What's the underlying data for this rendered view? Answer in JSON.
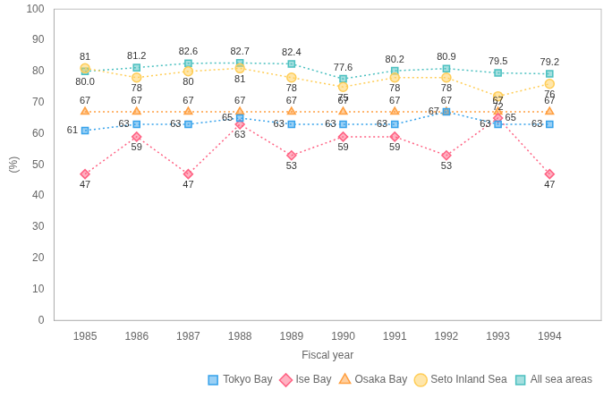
{
  "chart_data": {
    "type": "line",
    "xlabel": "Fiscal year",
    "ylabel": "(%)",
    "x": [
      1985,
      1986,
      1987,
      1988,
      1989,
      1990,
      1991,
      1992,
      1993,
      1994
    ],
    "xlim": [
      1984.4,
      1995.0
    ],
    "xticks": [
      1985,
      1986,
      1987,
      1988,
      1989,
      1990,
      1991,
      1992,
      1993,
      1994
    ],
    "ylim": [
      0,
      100
    ],
    "yticks": [
      0,
      10,
      20,
      30,
      40,
      50,
      60,
      70,
      80,
      90,
      100
    ],
    "grid": false,
    "legend": "lower right",
    "data_labels": true,
    "line_style": "dotted",
    "series": [
      {
        "name": "Tokyo Bay",
        "marker": "square",
        "values": [
          61,
          63,
          63,
          65,
          63,
          63,
          63,
          67,
          63,
          63
        ]
      },
      {
        "name": "Ise Bay",
        "marker": "diamond",
        "values": [
          47,
          59,
          47,
          63,
          53,
          59,
          59,
          53,
          65,
          47
        ]
      },
      {
        "name": "Osaka Bay",
        "marker": "triangle",
        "values": [
          67,
          67,
          67,
          67,
          67,
          67,
          67,
          67,
          67,
          67
        ]
      },
      {
        "name": "Seto Inland Sea",
        "marker": "circle",
        "values": [
          81,
          78,
          80,
          81,
          78,
          75,
          78,
          78,
          72,
          76
        ]
      },
      {
        "name": "All sea areas",
        "marker": "square",
        "values": [
          80.0,
          81.2,
          82.6,
          82.7,
          82.4,
          77.6,
          80.2,
          80.9,
          79.5,
          79.2
        ],
        "value_labels": [
          "80.0",
          "81.2",
          "82.6",
          "82.7",
          "82.4",
          "77.6",
          "80.2",
          "80.9",
          "79.5",
          "79.2"
        ]
      }
    ]
  }
}
